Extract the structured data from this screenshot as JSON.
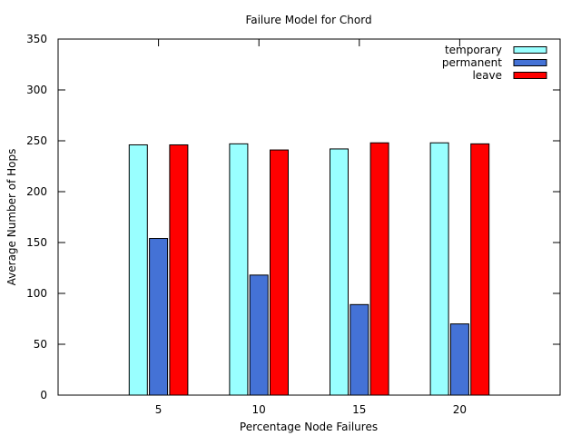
{
  "chart_data": {
    "type": "bar",
    "title": "Failure Model for Chord",
    "xlabel": "Percentage Node Failures",
    "ylabel": "Average Number of Hops",
    "categories": [
      "5",
      "10",
      "15",
      "20"
    ],
    "ylim": [
      0,
      350
    ],
    "yticks": [
      0,
      50,
      100,
      150,
      200,
      250,
      300,
      350
    ],
    "grid": false,
    "legend_position": "top-right",
    "series": [
      {
        "name": "temporary",
        "color": "#99ffff",
        "values": [
          246,
          247,
          242,
          248
        ]
      },
      {
        "name": "permanent",
        "color": "#4472d6",
        "values": [
          154,
          118,
          89,
          70
        ]
      },
      {
        "name": "leave",
        "color": "#ff0000",
        "values": [
          246,
          241,
          248,
          247
        ]
      }
    ]
  }
}
